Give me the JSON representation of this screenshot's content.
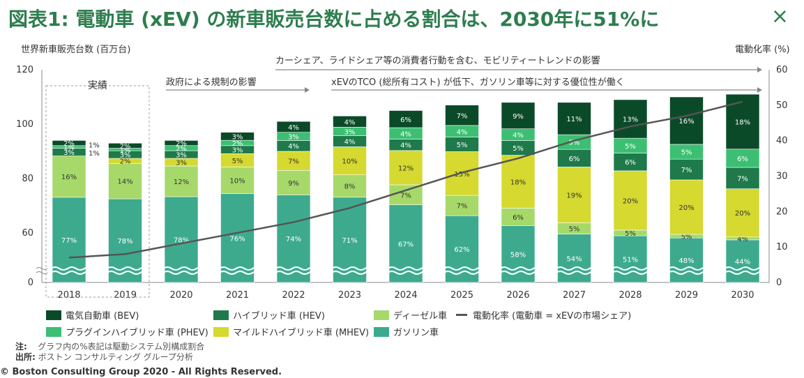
{
  "title": "図表1: 電動車 (xEV) の新車販売台数に占める割合は、2030年に51%に",
  "close_label": "×",
  "chart_data": {
    "type": "bar",
    "categories": [
      "2018",
      "2019",
      "2020",
      "2021",
      "2022",
      "2023",
      "2024",
      "2025",
      "2026",
      "2027",
      "2028",
      "2029",
      "2030"
    ],
    "totals": [
      94,
      93,
      94,
      97,
      101,
      103,
      105,
      107,
      108,
      108,
      109,
      110,
      111
    ],
    "series": [
      {
        "name": "ガソリン車",
        "color": "#3daa8e",
        "labels": [
          "77%",
          "78%",
          "78%",
          "76%",
          "74%",
          "71%",
          "67%",
          "62%",
          "58%",
          "54%",
          "51%",
          "48%",
          "44%"
        ],
        "values": [
          77,
          78,
          78,
          76,
          74,
          71,
          67,
          62,
          58,
          54,
          51,
          48,
          44
        ]
      },
      {
        "name": "ディーゼル車",
        "color": "#a6d96a",
        "labels": [
          "16%",
          "14%",
          "12%",
          "10%",
          "9%",
          "8%",
          "7%",
          "7%",
          "6%",
          "5%",
          "5%",
          "5%",
          "4%"
        ],
        "values": [
          16,
          14,
          12,
          10,
          9,
          8,
          7,
          7,
          6,
          5,
          5,
          5,
          4
        ]
      },
      {
        "name": "マイルドハイブリッド車 (MHEV)",
        "color": "#d5d930",
        "labels": [
          "",
          "2%",
          "3%",
          "5%",
          "7%",
          "10%",
          "12%",
          "15%",
          "18%",
          "19%",
          "20%",
          "20%",
          "20%"
        ],
        "values": [
          0,
          2,
          3,
          5,
          7,
          10,
          12,
          15,
          18,
          19,
          20,
          20,
          20
        ]
      },
      {
        "name": "ハイブリッド車 (HEV)",
        "color": "#1e7a4a",
        "labels": [
          "3%",
          "3%",
          "3%",
          "3%",
          "4%",
          "4%",
          "4%",
          "5%",
          "5%",
          "6%",
          "6%",
          "7%",
          "7%"
        ],
        "values": [
          3,
          3,
          3,
          3,
          4,
          4,
          4,
          5,
          5,
          6,
          6,
          7,
          7
        ]
      },
      {
        "name": "プラグインハイブリッド車 (PHEV)",
        "color": "#3cbf72",
        "labels": [
          "1%",
          "1%",
          "2%",
          "2%",
          "3%",
          "3%",
          "4%",
          "4%",
          "4%",
          "5%",
          "5%",
          "5%",
          "6%"
        ],
        "values": [
          1,
          1,
          2,
          2,
          3,
          3,
          4,
          4,
          4,
          5,
          5,
          5,
          6
        ]
      },
      {
        "name": "電気自動車 (BEV)",
        "color": "#0b4a28",
        "labels": [
          "2%",
          "2%",
          "2%",
          "3%",
          "4%",
          "4%",
          "6%",
          "7%",
          "9%",
          "11%",
          "13%",
          "16%",
          "18%"
        ],
        "values": [
          2,
          2,
          2,
          3,
          4,
          4,
          6,
          7,
          9,
          11,
          13,
          16,
          18
        ]
      }
    ],
    "line_series": {
      "name": "電動化率 (電動車 = xEVの市場シェア)",
      "values": [
        7,
        8,
        11,
        14,
        17,
        21,
        26,
        31,
        35,
        40,
        44,
        47,
        51
      ]
    },
    "ylabel_left": "世界新車販売台数 (百万台)",
    "ylabel_right": "電動化率 (%)",
    "yticks_left": [
      "120",
      "100",
      "80",
      "60",
      "0"
    ],
    "yticks_right": [
      "60",
      "50",
      "40",
      "30",
      "20",
      "10",
      "0"
    ],
    "ylim_left": [
      0,
      120
    ],
    "ylim_right": [
      0,
      60
    ],
    "axis_break": "between 0 and 60 on left axis",
    "side_notes_2018": [
      "1%",
      "1%"
    ],
    "annotations": {
      "actual": "実績",
      "regulation": "政府による規制の影響",
      "tco": "xEVのTCO (総所有コスト) が低下、ガソリン車等に対する優位性が働く",
      "mobility": "カーシェア、ライドシェア等の消費者行動を含む、モビリティートレンドの影響"
    }
  },
  "legend": [
    {
      "label": "電気自動車 (BEV)",
      "color": "#0b4a28"
    },
    {
      "label": "ハイブリッド車 (HEV)",
      "color": "#1e7a4a"
    },
    {
      "label": "ディーゼル車",
      "color": "#a6d96a"
    },
    {
      "label": "電動化率 (電動車 = xEVの市場シェア)",
      "color": "#555555"
    },
    {
      "label": "プラグインハイブリッド車 (PHEV)",
      "color": "#3cbf72"
    },
    {
      "label": "マイルドハイブリッド車 (MHEV)",
      "color": "#d5d930"
    },
    {
      "label": "ガソリン車",
      "color": "#3daa8e"
    }
  ],
  "notes": {
    "note_label": "注:",
    "note_text": "グラフ内の%表記は駆動システム別構成割合",
    "source_label": "出所:",
    "source_text": "ボストン コンサルティング グループ分析"
  },
  "copyright": "© Boston Consulting Group 2020 - All Rights Reserved."
}
